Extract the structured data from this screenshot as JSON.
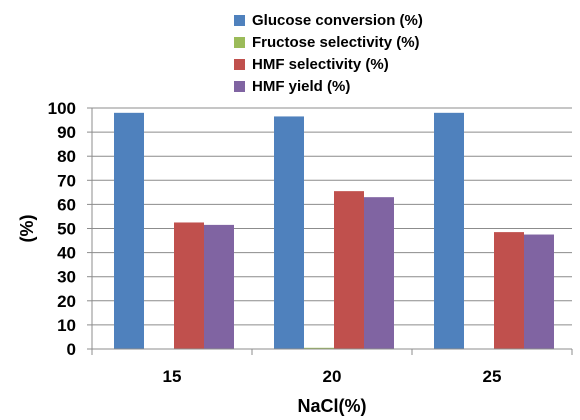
{
  "chart_data": {
    "type": "bar",
    "xlabel": "NaCl(%)",
    "ylabel": "(%)",
    "categories": [
      "15",
      "20",
      "25"
    ],
    "ylim": [
      0,
      100
    ],
    "yticks": [
      "0",
      "10",
      "20",
      "30",
      "40",
      "50",
      "60",
      "70",
      "80",
      "90",
      "100"
    ],
    "grid": true,
    "legend_position": "top",
    "series": [
      {
        "name": "Glucose conversion (%)",
        "color": "#4f81bd",
        "values": [
          98,
          96.5,
          98
        ]
      },
      {
        "name": "Fructose selectivity (%)",
        "color": "#9bbb59",
        "values": [
          0,
          0.5,
          0
        ]
      },
      {
        "name": "HMF selectivity  (%)",
        "color": "#c0504d",
        "values": [
          52.5,
          65.5,
          48.5
        ]
      },
      {
        "name": "HMF yield (%)",
        "color": "#8064a2",
        "values": [
          51.5,
          63,
          47.5
        ]
      }
    ]
  }
}
